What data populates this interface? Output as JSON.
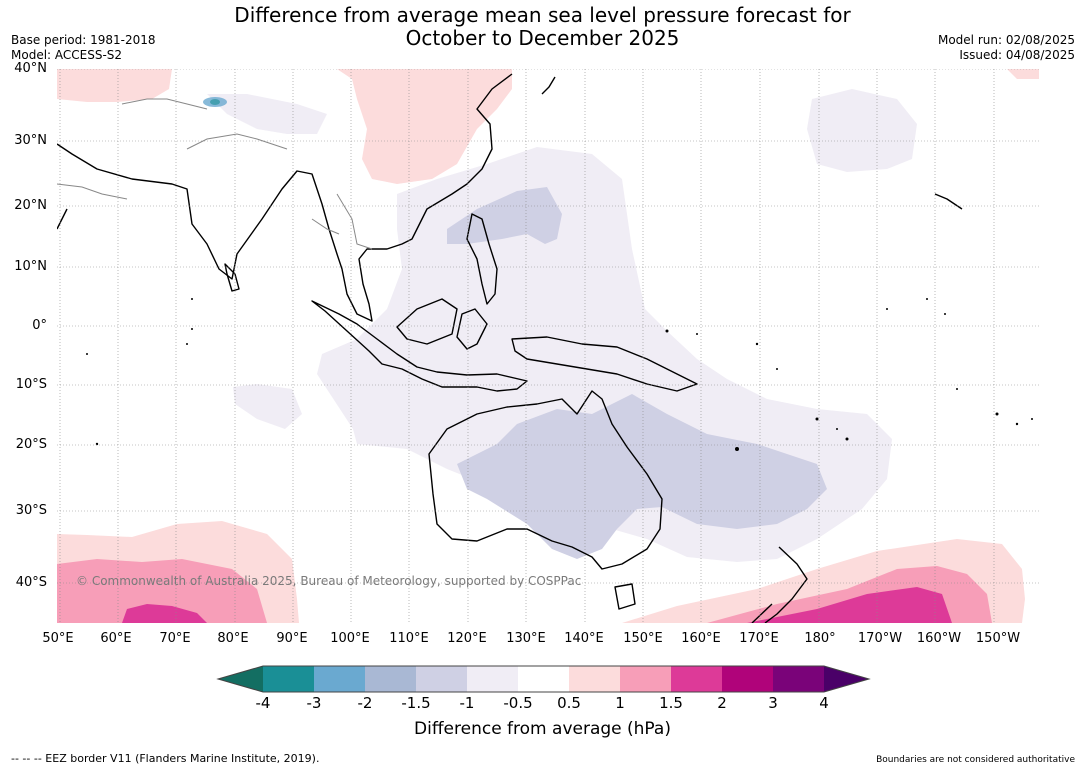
{
  "title": {
    "line1": "Difference from average mean sea level pressure forecast for",
    "line2": "October to December 2025"
  },
  "meta_left": {
    "base_period": "Base period: 1981-2018",
    "model": "Model: ACCESS-S2"
  },
  "meta_right": {
    "model_run": "Model run: 02/08/2025",
    "issued": "Issued: 04/08/2025"
  },
  "latitude_labels": [
    "40°N",
    "30°N",
    "20°N",
    "10°N",
    "0°",
    "10°S",
    "20°S",
    "30°S",
    "40°S"
  ],
  "longitude_labels": [
    "50°E",
    "60°E",
    "70°E",
    "80°E",
    "90°E",
    "100°E",
    "110°E",
    "120°E",
    "130°E",
    "140°E",
    "150°E",
    "160°E",
    "170°E",
    "180°",
    "170°W",
    "160°W",
    "150°W"
  ],
  "copyright": "© Commonwealth of Australia 2025, Bureau of Meteorology, supported by COSPPac",
  "colorbar": {
    "labels": [
      "-4",
      "-3",
      "-2",
      "-1.5",
      "-1",
      "-0.5",
      "0.5",
      "1",
      "1.5",
      "2",
      "3",
      "4"
    ],
    "colors": [
      "#136e62",
      "#1a8f96",
      "#6aa9d0",
      "#a9b8d4",
      "#cfd0e4",
      "#f0edf5",
      "#ffffff",
      "#fcdcdc",
      "#f79eb8",
      "#dd3a98",
      "#b0037a",
      "#7a0379",
      "#4a0068"
    ],
    "title": "Difference from average (hPa)"
  },
  "footer": {
    "left": "--  --  -- EEZ border V11 (Flanders Marine Institute, 2019).",
    "right": "Boundaries are not considered authoritative"
  }
}
